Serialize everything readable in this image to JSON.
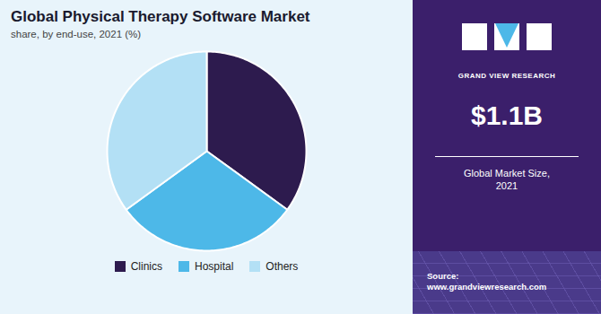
{
  "chart_data": {
    "type": "pie",
    "title": "Global Physical Therapy Software Market",
    "subtitle": "share, by end-use, 2021 (%)",
    "categories": [
      "Clinics",
      "Hospital",
      "Others"
    ],
    "values": [
      35,
      30,
      35
    ],
    "colors": [
      "#2d1b4e",
      "#4db8e8",
      "#b3e0f5"
    ],
    "legend": "bottom",
    "annotations": [
      "GRAND VIEW RESEARCH",
      "$1.1B",
      "Global Market Size,\n2021",
      "Source:\nwww.grandviewresearch.com"
    ]
  }
}
